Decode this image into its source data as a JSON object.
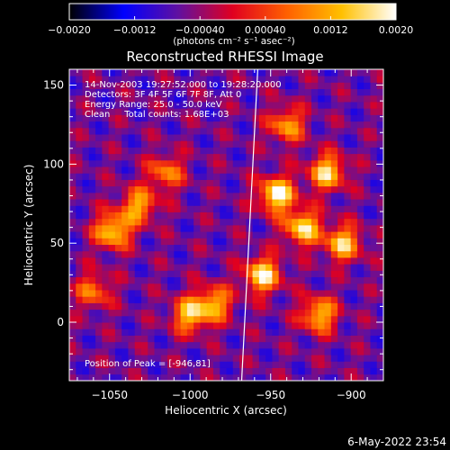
{
  "chart_data": {
    "type": "heatmap",
    "title": "Reconstructed RHESSI Image",
    "xlabel": "Heliocentric X (arcsec)",
    "ylabel": "Heliocentric Y (arcsec)",
    "xlim": [
      -1075,
      -880
    ],
    "ylim": [
      -37,
      160
    ],
    "x_ticks": [
      -1050,
      -1000,
      -950,
      -900
    ],
    "x_tick_labels": [
      "−1050",
      "−1000",
      "−950",
      "−900"
    ],
    "y_ticks": [
      0,
      50,
      100,
      150
    ],
    "y_tick_labels": [
      "0",
      "50",
      "100",
      "150"
    ],
    "colorbar": {
      "range": [
        -0.002,
        0.002
      ],
      "ticks": [
        -0.002,
        -0.0012,
        -0.0004,
        0.0004,
        0.0012,
        0.002
      ],
      "tick_labels": [
        "−0.0020",
        "−0.0012",
        "−0.00040",
        "0.00040",
        "0.0012",
        "0.0020"
      ],
      "unit_label": "(photons cm⁻² s⁻¹ asec⁻²)",
      "colormap": [
        "#000000",
        "#0000ff",
        "#6010a0",
        "#e00020",
        "#ff6000",
        "#ffc000",
        "#ffffff"
      ]
    },
    "annotations": [
      "14-Nov-2003 19:27:52.000 to 19:28:20.000",
      "Detectors: 3F 4F 5F 6F 7F 8F, Att 0",
      "Energy Range: 25.0 - 50.0 keV",
      "Clean     Total counts: 1.68E+03"
    ],
    "peak_label": "Position of Peak = [-946,81]",
    "limb_line": {
      "x": [
        -958,
        -968
      ],
      "y": [
        160,
        -37
      ],
      "color": "#ffffff"
    },
    "bright_regions": [
      {
        "x": -1048,
        "y": 58,
        "value": 0.0016
      },
      {
        "x": -1032,
        "y": 74,
        "value": 0.0012
      },
      {
        "x": -1015,
        "y": 95,
        "value": 0.0009
      },
      {
        "x": -1000,
        "y": 5,
        "value": 0.0014
      },
      {
        "x": -985,
        "y": 12,
        "value": 0.0012
      },
      {
        "x": -955,
        "y": 30,
        "value": 0.0018
      },
      {
        "x": -946,
        "y": 81,
        "value": 0.002
      },
      {
        "x": -930,
        "y": 60,
        "value": 0.0017
      },
      {
        "x": -915,
        "y": 95,
        "value": 0.0016
      },
      {
        "x": -905,
        "y": 50,
        "value": 0.0015
      },
      {
        "x": -920,
        "y": 5,
        "value": 0.0014
      },
      {
        "x": -940,
        "y": 125,
        "value": 0.0011
      },
      {
        "x": -1060,
        "y": 20,
        "value": 0.0008
      }
    ],
    "grid": false,
    "legend": "none"
  },
  "footer": {
    "date": "6-May-2022 23:54"
  }
}
